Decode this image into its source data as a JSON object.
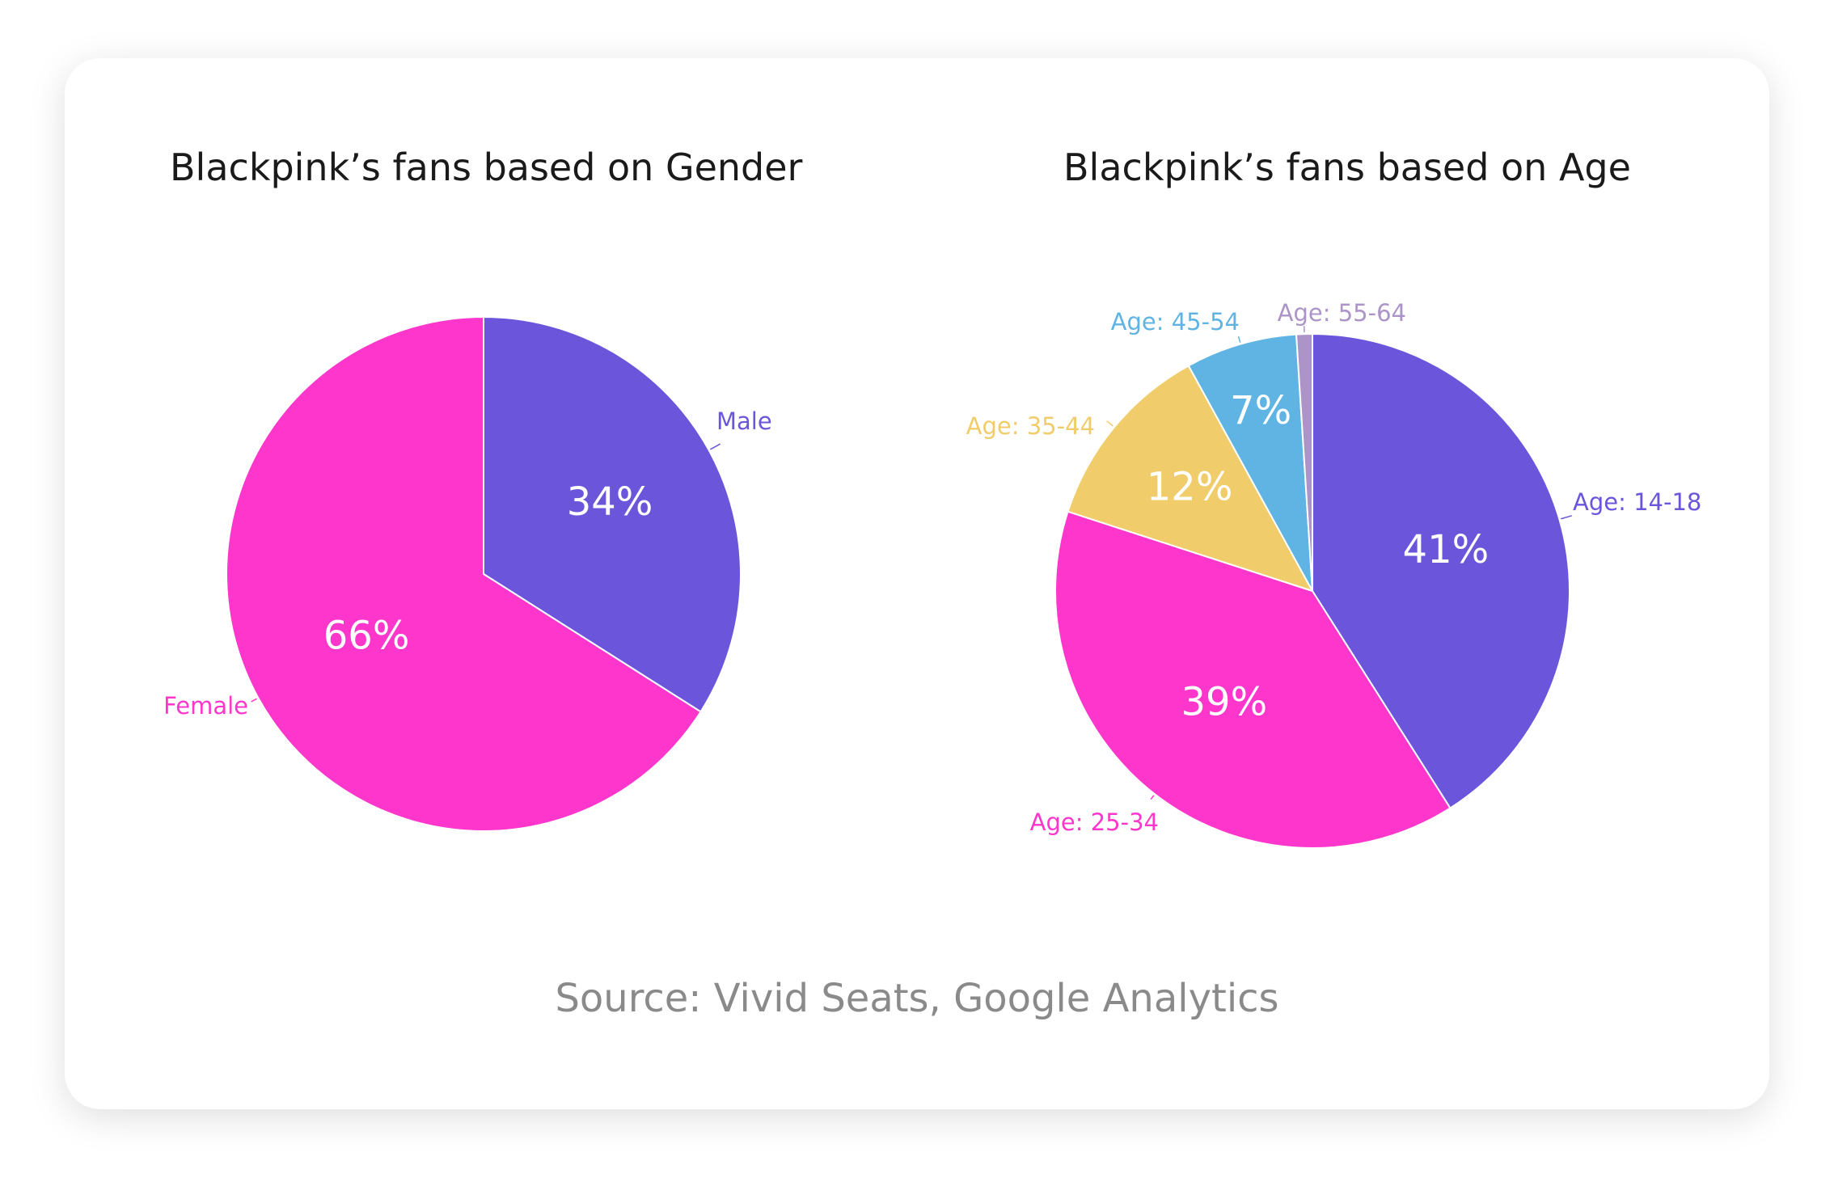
{
  "chart_data": [
    {
      "type": "pie",
      "title": "Blackpink’s fans based on Gender",
      "categories": [
        "Male",
        "Female"
      ],
      "values": [
        34,
        66
      ],
      "value_labels": [
        "34%",
        "66%"
      ],
      "colors": [
        "#6b55db",
        "#ff36cc"
      ]
    },
    {
      "type": "pie",
      "title": "Blackpink’s fans based on Age",
      "categories": [
        "Age: 14-18",
        "Age: 25-34",
        "Age: 35-44",
        "Age: 45-54",
        "Age: 55-64"
      ],
      "values": [
        41,
        39,
        12,
        7,
        1
      ],
      "value_labels": [
        "41%",
        "39%",
        "12%",
        "7%",
        ""
      ],
      "colors": [
        "#6b55db",
        "#ff36cc",
        "#f0cc6a",
        "#5fb4e4",
        "#ac94c8"
      ]
    }
  ],
  "source": "Source: Vivid Seats, Google Analytics"
}
